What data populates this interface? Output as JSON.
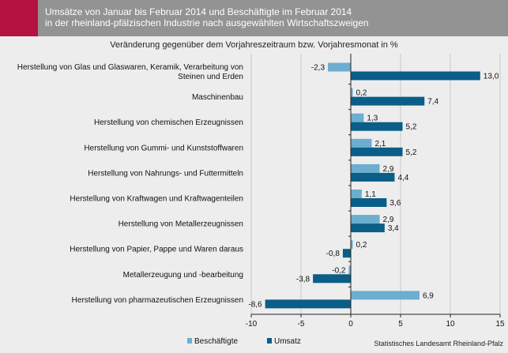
{
  "header": {
    "title_line1": "Umsätze von Januar bis Februar 2014 und Beschäftigte im Februar 2014",
    "title_line2": "in der rheinland-pfälzischen Industrie nach ausgewählten Wirtschaftszweigen"
  },
  "source": "Statistisches Landesamt Rheinland-Pfalz",
  "colors": {
    "accent": "#b5123f",
    "header_bg": "#939393",
    "beschaeftigte": "#6baed0",
    "umsatz": "#0a5e87",
    "background": "#ededed"
  },
  "chart_data": {
    "type": "bar",
    "orientation": "horizontal",
    "title": "",
    "subtitle": "Veränderung gegenüber dem Vorjahreszeitraum bzw. Vorjahresmonat in %",
    "categories": [
      [
        "Herstellung von Glas und Glaswaren, Keramik, Verarbeitung von",
        "Steinen und Erden"
      ],
      [
        "Maschinenbau"
      ],
      [
        "Herstellung von chemischen Erzeugnissen"
      ],
      [
        "Herstellung von Gummi- und Kunststoffwaren"
      ],
      [
        "Herstellung von Nahrungs- und Futtermitteln"
      ],
      [
        "Herstellung von Kraftwagen und Kraftwagenteilen"
      ],
      [
        "Herstellung von Metallerzeugnissen"
      ],
      [
        "Herstellung von Papier, Pappe und Waren daraus"
      ],
      [
        "Metallerzeugung und -bearbeitung"
      ],
      [
        "Herstellung von pharmazeutischen Erzeugnissen"
      ]
    ],
    "series": [
      {
        "name": "Beschäftigte",
        "color": "#6baed0",
        "values": [
          -2.3,
          0.2,
          1.3,
          2.1,
          2.9,
          1.1,
          2.9,
          0.2,
          -0.2,
          6.9
        ],
        "labels": [
          "-2,3",
          "0,2",
          "1,3",
          "2,1",
          "2,9",
          "1,1",
          "2,9",
          "0,2",
          "-0,2",
          "6,9"
        ]
      },
      {
        "name": "Umsatz",
        "color": "#0a5e87",
        "values": [
          13.0,
          7.4,
          5.2,
          5.2,
          4.4,
          3.6,
          3.4,
          -0.8,
          -3.8,
          -8.6
        ],
        "labels": [
          "13,0",
          "7,4",
          "5,2",
          "5,2",
          "4,4",
          "3,6",
          "3,4",
          "-0,8",
          "-3,8",
          "-8,6"
        ]
      }
    ],
    "xlim": [
      -10,
      15
    ],
    "xticks": [
      -10,
      -5,
      0,
      5,
      10,
      15
    ],
    "xtick_labels": [
      "-10",
      "-5",
      "0",
      "5",
      "10",
      "15"
    ],
    "grid": true,
    "legend_position": "bottom-left"
  }
}
